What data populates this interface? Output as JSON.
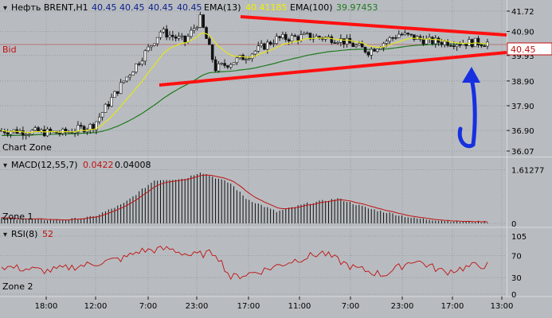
{
  "header": {
    "symbol": "Нефть BRENT,H1",
    "ohlc": [
      "40.45",
      "40.45",
      "40.45",
      "40.45"
    ],
    "ema13_label": "EMA(13)",
    "ema13_value": "40.41185",
    "ema100_label": "EMA(100)",
    "ema100_value": "39.97453"
  },
  "colors": {
    "background": "#b8bcc0",
    "grid": "#8a9097",
    "candle_up": "#f2f2f2",
    "candle_down": "#111111",
    "ema13": "#e6e61a",
    "ema100": "#1f7a1f",
    "trendline": "#ff1010",
    "arrow": "#1630e0",
    "bid": "#c01010",
    "macd_hist": "#111111",
    "macd_signal": "#c01010",
    "rsi": "#c01010",
    "price_box_text": "#c01010"
  },
  "bid_label": "Bid",
  "zones": {
    "main": "Chart Zone",
    "macd": "Zone 1",
    "rsi": "Zone 2"
  },
  "macd_header": {
    "label": "MACD(12,55,7)",
    "value1": "0.0422",
    "value2": "0.04008"
  },
  "rsi_header": {
    "label": "RSI(8)",
    "value": "52"
  },
  "current_price_box": "40.45",
  "chart_data": [
    {
      "type": "candlestick",
      "title": "Нефть BRENT,H1",
      "price_axis_ticks": [
        "41.72",
        "40.90",
        "39.93",
        "38.90",
        "37.90",
        "36.90",
        "36.07"
      ],
      "time_axis_ticks": [
        "18:00",
        "12:00",
        "7:00",
        "23:00",
        "17:00",
        "11:00",
        "7:00",
        "23:00",
        "17:00",
        "13:00"
      ],
      "ylim": [
        36.07,
        41.72
      ],
      "bid": 40.45,
      "key_points": {
        "x_index": [
          0,
          20,
          30,
          40,
          48,
          52,
          60,
          65,
          70,
          80,
          90,
          100,
          110,
          120,
          130,
          140,
          150
        ],
        "close": [
          36.9,
          36.8,
          37.1,
          38.9,
          40.2,
          40.9,
          40.5,
          41.4,
          39.4,
          39.9,
          40.6,
          40.7,
          40.6,
          40.1,
          40.8,
          40.5,
          40.45
        ]
      },
      "series": [
        {
          "name": "EMA(13)",
          "last": 40.41185
        },
        {
          "name": "EMA(100)",
          "last": 39.97453
        }
      ],
      "trendlines": [
        {
          "from": [
            75,
            41.4
          ],
          "to": [
            160,
            40.9
          ]
        },
        {
          "from": [
            50,
            38.9
          ],
          "to": [
            160,
            39.95
          ]
        }
      ]
    },
    {
      "type": "bar",
      "title": "MACD(12,55,7)",
      "ticks": [
        "1.61277",
        "0"
      ],
      "ylim": [
        0,
        1.7
      ],
      "key_points": {
        "x_index": [
          0,
          20,
          30,
          40,
          50,
          60,
          65,
          75,
          80,
          90,
          100,
          110,
          120,
          135,
          150
        ],
        "value": [
          0.15,
          0.1,
          0.2,
          0.6,
          1.3,
          1.35,
          1.55,
          1.2,
          0.75,
          0.35,
          0.6,
          0.75,
          0.45,
          0.15,
          0.05
        ]
      }
    },
    {
      "type": "line",
      "title": "RSI(8)",
      "ticks": [
        "105",
        "70",
        "30",
        "0"
      ],
      "ylim": [
        0,
        105
      ],
      "key_points": {
        "x_index": [
          0,
          15,
          30,
          40,
          45,
          55,
          62,
          70,
          75,
          85,
          95,
          105,
          115,
          125,
          135,
          145,
          155
        ],
        "value": [
          50,
          42,
          55,
          65,
          78,
          82,
          70,
          75,
          30,
          42,
          60,
          75,
          48,
          35,
          62,
          40,
          52
        ]
      }
    }
  ]
}
